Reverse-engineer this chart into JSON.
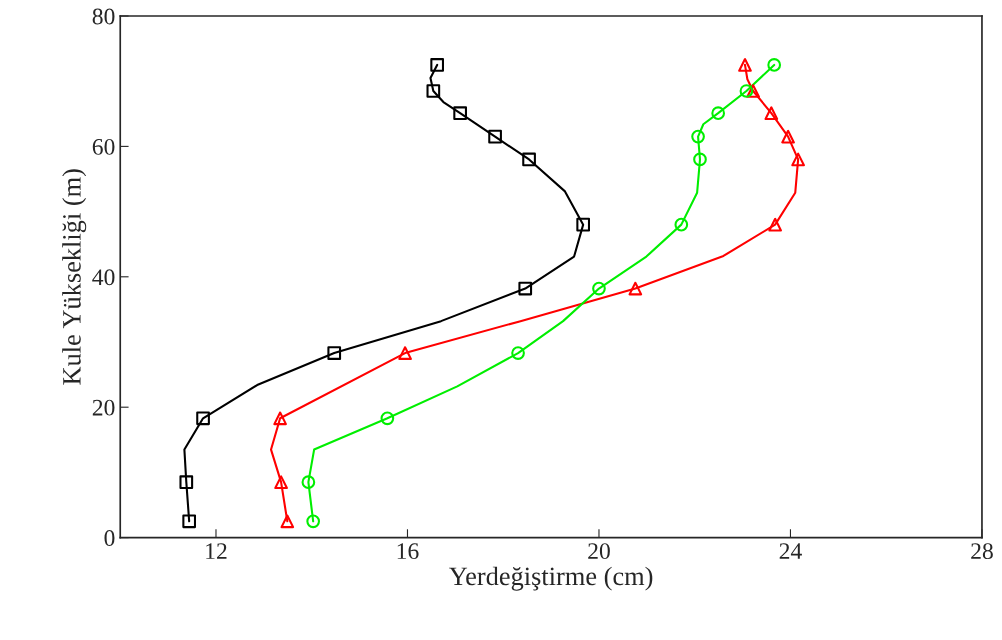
{
  "chart_data": {
    "type": "line",
    "xlabel": "Yerdeğiştirme (cm)",
    "ylabel": "Kule Yüksekliği (m)",
    "xlim": [
      10,
      28
    ],
    "xticks": [
      12,
      16,
      20,
      24,
      28
    ],
    "ylim": [
      0,
      80
    ],
    "yticks": [
      0,
      20,
      40,
      60,
      80
    ],
    "grid": false,
    "legend": false,
    "series": [
      {
        "color": "#000000",
        "marker": "none",
        "x": [
          11.44,
          11.38,
          11.34,
          11.73,
          12.86,
          14.47,
          16.7,
          18.46,
          19.48,
          19.67,
          19.29,
          18.54,
          17.83,
          17.1,
          16.75,
          16.54,
          16.48,
          16.62
        ],
        "values": [
          2.5,
          8.5,
          13.5,
          18.3,
          23.4,
          28.3,
          33.2,
          38.2,
          43.1,
          48,
          53.1,
          58,
          61.5,
          65.1,
          66.8,
          68.5,
          70.5,
          72.5
        ]
      },
      {
        "type": "scatter",
        "color": "#000000",
        "marker": "square",
        "x": [
          11.44,
          11.38,
          11.73,
          14.47,
          18.46,
          19.67,
          18.54,
          17.83,
          17.1,
          16.54,
          16.62
        ],
        "values": [
          2.5,
          8.5,
          18.3,
          28.3,
          38.2,
          48,
          58,
          61.5,
          65.1,
          68.5,
          72.5
        ]
      },
      {
        "color": "#ff0000",
        "marker": "none",
        "x": [
          13.49,
          13.36,
          13.15,
          13.34,
          15.95,
          18.36,
          20.76,
          22.6,
          23.68,
          24.1,
          24.16,
          23.95,
          23.6,
          23.22,
          23.1,
          23.05
        ],
        "values": [
          2.5,
          8.5,
          13.5,
          18.3,
          28.3,
          33.2,
          38.2,
          43.2,
          48,
          52.9,
          58,
          61.5,
          65.1,
          68.5,
          70.3,
          72.5
        ]
      },
      {
        "type": "scatter",
        "color": "#ff0000",
        "marker": "triangle",
        "x": [
          13.49,
          13.36,
          13.34,
          15.95,
          20.76,
          23.68,
          24.16,
          23.95,
          23.6,
          23.22,
          23.05
        ],
        "values": [
          2.5,
          8.5,
          18.3,
          28.3,
          38.2,
          48,
          58,
          61.5,
          65.1,
          68.5,
          72.5
        ]
      },
      {
        "color": "#00ee00",
        "marker": "none",
        "x": [
          14.03,
          13.93,
          14.05,
          15.58,
          17.04,
          18.31,
          19.25,
          20.0,
          20.99,
          21.72,
          22.05,
          22.11,
          22.07,
          22.18,
          22.49,
          23.08,
          23.66
        ],
        "values": [
          2.5,
          8.5,
          13.5,
          18.3,
          23.2,
          28.3,
          33.2,
          38.2,
          43.1,
          48,
          52.9,
          58,
          61.5,
          63.4,
          65.1,
          68.5,
          72.5
        ]
      },
      {
        "type": "scatter",
        "color": "#00ee00",
        "marker": "circle",
        "x": [
          14.03,
          13.93,
          15.58,
          18.31,
          20.0,
          21.72,
          22.11,
          22.07,
          22.49,
          23.08,
          23.66
        ],
        "values": [
          2.5,
          8.5,
          18.3,
          28.3,
          38.2,
          48,
          58,
          61.5,
          65.1,
          68.5,
          72.5
        ]
      }
    ]
  }
}
